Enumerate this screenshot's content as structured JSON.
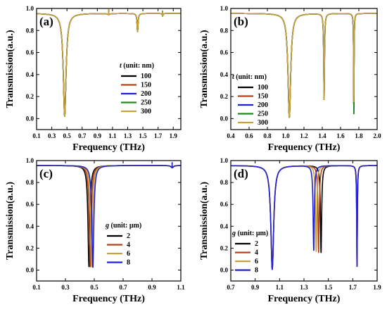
{
  "chart_data": [
    {
      "type": "line",
      "panel_label": "(a)",
      "xlabel": "Frequency (THz)",
      "ylabel": "Transmission(a.u.)",
      "xlim": [
        0.1,
        2.0
      ],
      "ylim": [
        -0.1,
        1.0
      ],
      "xticks": [
        "0.1",
        "0.3",
        "0.5",
        "0.7",
        "0.9",
        "1.1",
        "1.3",
        "1.5",
        "1.7",
        "1.9"
      ],
      "yticks": [
        "0.0",
        "0.2",
        "0.4",
        "0.6",
        "0.8",
        "1.0"
      ],
      "legend_title_var": "t",
      "legend_title_rest": " (unit: nm)",
      "legend_position": "center-right",
      "baseline": 0.955,
      "series": [
        {
          "name": "100",
          "color": "#000000",
          "dips": [
            [
              0.47,
              0.02,
              0.022
            ],
            [
              1.05,
              0.945,
              0.02
            ],
            [
              1.43,
              0.79,
              0.008
            ],
            [
              1.76,
              0.93,
              0.006
            ]
          ]
        },
        {
          "name": "150",
          "color": "#b5401a",
          "dips": [
            [
              0.47,
              0.02,
              0.022
            ],
            [
              1.05,
              0.945,
              0.02
            ],
            [
              1.43,
              0.79,
              0.008
            ],
            [
              1.76,
              0.93,
              0.006
            ]
          ]
        },
        {
          "name": "200",
          "color": "#1f1fd6",
          "dips": [
            [
              0.47,
              0.02,
              0.022
            ],
            [
              1.05,
              0.945,
              0.02
            ],
            [
              1.43,
              0.79,
              0.008
            ],
            [
              1.76,
              0.93,
              0.006
            ]
          ]
        },
        {
          "name": "250",
          "color": "#1f8a1f",
          "dips": [
            [
              0.47,
              0.02,
              0.022
            ],
            [
              1.05,
              0.945,
              0.02
            ],
            [
              1.43,
              0.79,
              0.008
            ],
            [
              1.76,
              0.93,
              0.006
            ]
          ]
        },
        {
          "name": "300",
          "color": "#c8a23c",
          "dips": [
            [
              0.47,
              0.02,
              0.022
            ],
            [
              1.05,
              0.945,
              0.02
            ],
            [
              1.43,
              0.79,
              0.008
            ],
            [
              1.76,
              0.93,
              0.006
            ]
          ]
        }
      ]
    },
    {
      "type": "line",
      "panel_label": "(b)",
      "xlabel": "Frequency (THz)",
      "ylabel": "Transmission(a.u.)",
      "xlim": [
        0.4,
        2.0
      ],
      "ylim": [
        -0.1,
        1.0
      ],
      "xticks": [
        "0.4",
        "0.6",
        "0.8",
        "1.0",
        "1.2",
        "1.4",
        "1.6",
        "1.8",
        "2.0"
      ],
      "yticks": [
        "0.0",
        "0.2",
        "0.4",
        "0.6",
        "0.8",
        "1.0"
      ],
      "legend_title_var": "t",
      "legend_title_rest": " (unit: nm)",
      "legend_position": "center-left",
      "baseline": 0.955,
      "series": [
        {
          "name": "100",
          "color": "#000000",
          "dips": [
            [
              1.04,
              0.01,
              0.018
            ],
            [
              1.42,
              0.17,
              0.005
            ],
            [
              1.745,
              0.04,
              0.003
            ]
          ]
        },
        {
          "name": "150",
          "color": "#b5401a",
          "dips": [
            [
              1.04,
              0.01,
              0.018
            ],
            [
              1.42,
              0.17,
              0.005
            ],
            [
              1.745,
              0.05,
              0.003
            ]
          ]
        },
        {
          "name": "200",
          "color": "#1f1fd6",
          "dips": [
            [
              1.04,
              0.01,
              0.018
            ],
            [
              1.42,
              0.17,
              0.005
            ],
            [
              1.745,
              0.06,
              0.003
            ]
          ]
        },
        {
          "name": "250",
          "color": "#1f8a1f",
          "dips": [
            [
              1.04,
              0.01,
              0.018
            ],
            [
              1.42,
              0.17,
              0.005
            ],
            [
              1.745,
              0.04,
              0.003
            ]
          ]
        },
        {
          "name": "300",
          "color": "#c8a23c",
          "dips": [
            [
              1.04,
              0.01,
              0.018
            ],
            [
              1.42,
              0.17,
              0.005
            ],
            [
              1.745,
              0.15,
              0.003
            ]
          ]
        }
      ]
    },
    {
      "type": "line",
      "panel_label": "(c)",
      "xlabel": "Frequency (THz)",
      "ylabel": "Transmission(a.u.)",
      "xlim": [
        0.1,
        1.1
      ],
      "ylim": [
        -0.1,
        1.0
      ],
      "xticks": [
        "0.1",
        "0.3",
        "0.5",
        "0.7",
        "0.9",
        "1.1"
      ],
      "yticks": [
        "0.0",
        "0.2",
        "0.4",
        "0.6",
        "0.8",
        "1.0"
      ],
      "legend_title_var": "g",
      "legend_title_rest": " (unit: μm)",
      "legend_position": "center-right",
      "baseline": 0.955,
      "series": [
        {
          "name": "2",
          "color": "#000000",
          "dips": [
            [
              0.463,
              0.03,
              0.008
            ],
            [
              1.04,
              0.935,
              0.01
            ]
          ]
        },
        {
          "name": "4",
          "color": "#b5401a",
          "dips": [
            [
              0.472,
              0.03,
              0.008
            ],
            [
              1.04,
              0.935,
              0.01
            ]
          ]
        },
        {
          "name": "6",
          "color": "#c8a23c",
          "dips": [
            [
              0.481,
              0.03,
              0.008
            ],
            [
              1.04,
              0.935,
              0.01
            ]
          ]
        },
        {
          "name": "8",
          "color": "#1f1fd6",
          "dips": [
            [
              0.49,
              0.025,
              0.008
            ],
            [
              1.04,
              0.935,
              0.01
            ]
          ]
        }
      ]
    },
    {
      "type": "line",
      "panel_label": "(d)",
      "xlabel": "Frequency (THz)",
      "ylabel": "Transmission(a.u.)",
      "xlim": [
        0.7,
        1.9
      ],
      "ylim": [
        -0.1,
        1.0
      ],
      "xticks": [
        "0.7",
        "0.9",
        "1.1",
        "1.3",
        "1.5",
        "1.7",
        "1.9"
      ],
      "yticks": [
        "0.0",
        "0.2",
        "0.4",
        "0.6",
        "0.8",
        "1.0"
      ],
      "legend_title_var": "g",
      "legend_title_rest": " (unit: μm)",
      "legend_position": "center-left",
      "baseline": 0.955,
      "series": [
        {
          "name": "2",
          "color": "#000000",
          "dips": [
            [
              1.04,
              0.01,
              0.014
            ],
            [
              1.44,
              0.16,
              0.006
            ],
            [
              1.735,
              0.03,
              0.003
            ]
          ]
        },
        {
          "name": "4",
          "color": "#b5401a",
          "dips": [
            [
              1.04,
              0.01,
              0.014
            ],
            [
              1.42,
              0.16,
              0.006
            ],
            [
              1.735,
              0.03,
              0.003
            ]
          ]
        },
        {
          "name": "6",
          "color": "#c8a23c",
          "dips": [
            [
              1.04,
              0.01,
              0.014
            ],
            [
              1.4,
              0.17,
              0.006
            ],
            [
              1.735,
              0.03,
              0.003
            ]
          ]
        },
        {
          "name": "8",
          "color": "#1f1fd6",
          "dips": [
            [
              1.04,
              0.005,
              0.014
            ],
            [
              1.38,
              0.18,
              0.006
            ],
            [
              1.735,
              0.03,
              0.003
            ]
          ]
        }
      ]
    }
  ]
}
